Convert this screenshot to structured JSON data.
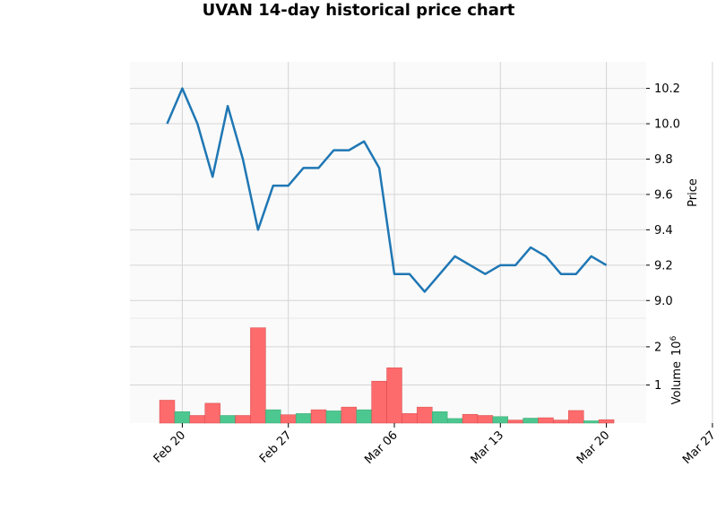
{
  "chart_data": [
    {
      "panel": "price",
      "type": "line",
      "title": "UVAN 14-day historical price chart",
      "ylabel": "Price",
      "x": [
        "Feb 19",
        "Feb 20",
        "Feb 21",
        "Feb 22",
        "Feb 23",
        "Feb 24",
        "Feb 25",
        "Feb 26",
        "Feb 27",
        "Feb 28",
        "Mar 01",
        "Mar 02",
        "Mar 03",
        "Mar 04",
        "Mar 05",
        "Mar 06",
        "Mar 07",
        "Mar 08",
        "Mar 09",
        "Mar 10",
        "Mar 11",
        "Mar 12",
        "Mar 13",
        "Mar 14",
        "Mar 15",
        "Mar 16",
        "Mar 17",
        "Mar 18",
        "Mar 19",
        "Mar 20"
      ],
      "values": [
        10.0,
        10.2,
        10.0,
        9.7,
        10.1,
        9.8,
        9.4,
        9.65,
        9.65,
        9.75,
        9.75,
        9.85,
        9.85,
        9.9,
        9.75,
        9.15,
        9.15,
        9.05,
        9.15,
        9.25,
        9.2,
        9.15,
        9.2,
        9.2,
        9.3,
        9.25,
        9.15,
        9.15,
        9.25,
        9.2
      ],
      "ylim": [
        8.9,
        10.35
      ],
      "yticks": [
        "9.0",
        "9.2",
        "9.4",
        "9.6",
        "9.8",
        "10.0",
        "10.2"
      ],
      "xticks": [
        "Feb 20",
        "Feb 27",
        "Mar 06",
        "Mar 13",
        "Mar 20",
        "Mar 27"
      ],
      "grid": true,
      "series_color": "#1f77b4"
    },
    {
      "panel": "volume",
      "type": "bar",
      "ylabel": "Volume",
      "ylabel_multiplier": "10",
      "ylabel_exponent": "6",
      "values": [
        0.6,
        0.3,
        0.2,
        0.52,
        0.2,
        0.2,
        2.5,
        0.35,
        0.22,
        0.25,
        0.35,
        0.32,
        0.42,
        0.35,
        1.1,
        1.45,
        0.25,
        0.42,
        0.3,
        0.12,
        0.23,
        0.2,
        0.17,
        0.08,
        0.13,
        0.14,
        0.08,
        0.33,
        0.06,
        0.09
      ],
      "direction": [
        "down",
        "up",
        "down",
        "down",
        "up",
        "down",
        "down",
        "up",
        "down",
        "up",
        "down",
        "up",
        "down",
        "up",
        "down",
        "down",
        "down",
        "down",
        "up",
        "up",
        "down",
        "down",
        "up",
        "down",
        "up",
        "down",
        "down",
        "down",
        "up",
        "down"
      ],
      "ylim": [
        0,
        2.75
      ],
      "yticks": [
        "1",
        "2"
      ],
      "up_color": "#4dc790",
      "down_color": "#fd6b6c"
    }
  ]
}
